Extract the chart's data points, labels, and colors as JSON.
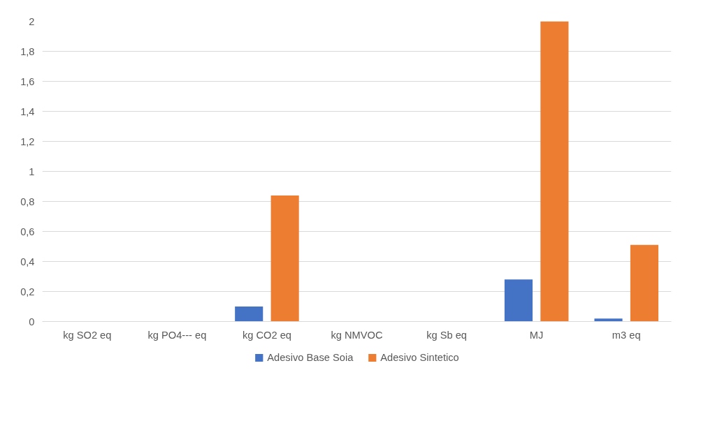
{
  "chart_data": {
    "type": "bar",
    "categories": [
      "kg SO2 eq",
      "kg PO4--- eq",
      "kg CO2 eq",
      "kg NMVOC",
      "kg Sb eq",
      "MJ",
      "m3 eq"
    ],
    "series": [
      {
        "name": "Adesivo Base Soia",
        "color": "#4472c4",
        "values": [
          0,
          0,
          0.1,
          0,
          0,
          0.28,
          0.02
        ]
      },
      {
        "name": "Adesivo Sintetico",
        "color": "#ed7d31",
        "values": [
          0,
          0,
          0.84,
          0,
          0,
          2.0,
          0.51
        ]
      }
    ],
    "ylim": [
      0,
      2
    ],
    "yticks": [
      0,
      {
        "value": 0.2,
        "label": "0,2"
      },
      {
        "value": 0.4,
        "label": "0,4"
      },
      {
        "value": 0.6,
        "label": "0,6"
      },
      {
        "value": 0.8,
        "label": "0,8"
      },
      1,
      {
        "value": 1.2,
        "label": "1,2"
      },
      {
        "value": 1.4,
        "label": "1,4"
      },
      {
        "value": 1.6,
        "label": "1,6"
      },
      {
        "value": 1.8,
        "label": "1,8"
      },
      2
    ],
    "grid": "y",
    "legend": "bottom"
  }
}
